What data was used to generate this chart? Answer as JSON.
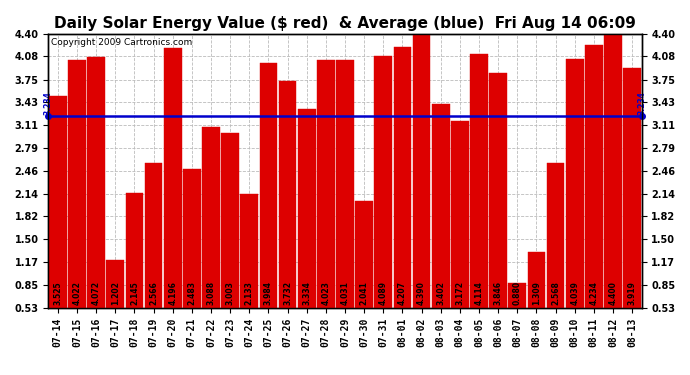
{
  "title": "Daily Solar Energy Value ($ red)  & Average (blue)  Fri Aug 14 06:09",
  "copyright": "Copyright 2009 Cartronics.com",
  "average": 3.234,
  "average_label": "3.234",
  "categories": [
    "07-14",
    "07-15",
    "07-16",
    "07-17",
    "07-18",
    "07-19",
    "07-20",
    "07-21",
    "07-22",
    "07-23",
    "07-24",
    "07-25",
    "07-26",
    "07-27",
    "07-28",
    "07-29",
    "07-30",
    "07-31",
    "08-01",
    "08-02",
    "08-03",
    "08-04",
    "08-05",
    "08-06",
    "08-07",
    "08-08",
    "08-09",
    "08-10",
    "08-11",
    "08-12",
    "08-13"
  ],
  "values": [
    3.525,
    4.022,
    4.072,
    1.202,
    2.145,
    2.566,
    4.196,
    2.483,
    3.088,
    3.003,
    2.133,
    3.984,
    3.732,
    3.334,
    4.023,
    4.031,
    2.041,
    4.089,
    4.207,
    4.39,
    3.402,
    3.172,
    4.114,
    3.846,
    0.88,
    1.309,
    2.568,
    4.039,
    4.234,
    4.4,
    3.919
  ],
  "value_labels": [
    "3.525",
    "4.022",
    "4.072",
    "1.202",
    "2.145",
    "2.566",
    "4.196",
    "2.483",
    "3.088",
    "3.003",
    "2.133",
    "3.984",
    "3.732",
    "3.334",
    "4.023",
    "4.031",
    "2.041",
    "4.089",
    "4.207",
    "4.390",
    "3.402",
    "3.172",
    "4.114",
    "3.846",
    "0.880",
    "1.309",
    "2.568",
    "4.039",
    "4.234",
    "4.400",
    "3.919"
  ],
  "bar_color": "#dd0000",
  "bar_edge_color": "#dd0000",
  "line_color": "#0000cc",
  "background_color": "#ffffff",
  "grid_color": "#bbbbbb",
  "ylim_min": 0.53,
  "ylim_max": 4.4,
  "yticks": [
    0.53,
    0.85,
    1.17,
    1.5,
    1.82,
    2.14,
    2.46,
    2.79,
    3.11,
    3.43,
    3.75,
    4.08,
    4.4
  ],
  "title_fontsize": 11,
  "label_fontsize": 5.5,
  "tick_fontsize": 7,
  "copyright_fontsize": 6.5
}
